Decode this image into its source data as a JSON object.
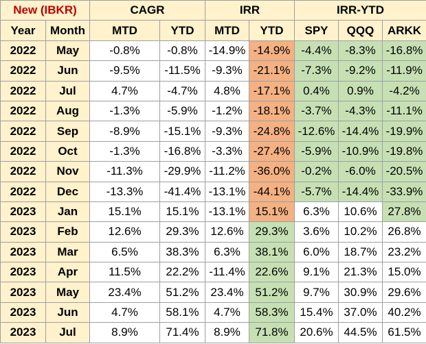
{
  "header": {
    "title": "New (IBKR)",
    "group_cagr": "CAGR",
    "group_irr": "IRR",
    "group_irr_ytd": "IRR-YTD",
    "col_year": "Year",
    "col_month": "Month",
    "cagr_mtd": "MTD",
    "cagr_ytd": "YTD",
    "irr_mtd": "MTD",
    "irr_ytd": "YTD",
    "spy": "SPY",
    "qqq": "QQQ",
    "arkk": "ARKK"
  },
  "rows": [
    {
      "year": "2022",
      "month": "May",
      "cagr_mtd": "-0.8%",
      "cagr_ytd": "-0.8%",
      "irr_mtd": "-14.9%",
      "irr_ytd": "-14.9%",
      "spy": "-4.4%",
      "qqq": "-8.3%",
      "arkk": "-16.8%",
      "irr_ytd_color": "#f4b183",
      "spy_color": "#c6e0b4",
      "qqq_color": "#c6e0b4",
      "arkk_color": "#c6e0b4"
    },
    {
      "year": "2022",
      "month": "Jun",
      "cagr_mtd": "-9.5%",
      "cagr_ytd": "-11.5%",
      "irr_mtd": "-9.3%",
      "irr_ytd": "-21.1%",
      "spy": "-7.3%",
      "qqq": "-9.2%",
      "arkk": "-11.9%",
      "irr_ytd_color": "#f4b183",
      "spy_color": "#c6e0b4",
      "qqq_color": "#c6e0b4",
      "arkk_color": "#c6e0b4"
    },
    {
      "year": "2022",
      "month": "Jul",
      "cagr_mtd": "4.7%",
      "cagr_ytd": "-4.7%",
      "irr_mtd": "4.8%",
      "irr_ytd": "-17.1%",
      "spy": "0.4%",
      "qqq": "0.9%",
      "arkk": "-4.2%",
      "irr_ytd_color": "#f4b183",
      "spy_color": "#c6e0b4",
      "qqq_color": "#c6e0b4",
      "arkk_color": "#c6e0b4"
    },
    {
      "year": "2022",
      "month": "Aug",
      "cagr_mtd": "-1.3%",
      "cagr_ytd": "-5.9%",
      "irr_mtd": "-1.2%",
      "irr_ytd": "-18.1%",
      "spy": "-3.7%",
      "qqq": "-4.3%",
      "arkk": "-11.1%",
      "irr_ytd_color": "#f4b183",
      "spy_color": "#c6e0b4",
      "qqq_color": "#c6e0b4",
      "arkk_color": "#c6e0b4"
    },
    {
      "year": "2022",
      "month": "Sep",
      "cagr_mtd": "-8.9%",
      "cagr_ytd": "-15.1%",
      "irr_mtd": "-9.3%",
      "irr_ytd": "-24.8%",
      "spy": "-12.6%",
      "qqq": "-14.4%",
      "arkk": "-19.9%",
      "irr_ytd_color": "#f4b183",
      "spy_color": "#c6e0b4",
      "qqq_color": "#c6e0b4",
      "arkk_color": "#c6e0b4"
    },
    {
      "year": "2022",
      "month": "Oct",
      "cagr_mtd": "-1.3%",
      "cagr_ytd": "-16.8%",
      "irr_mtd": "-3.3%",
      "irr_ytd": "-27.4%",
      "spy": "-5.9%",
      "qqq": "-10.9%",
      "arkk": "-19.8%",
      "irr_ytd_color": "#f4b183",
      "spy_color": "#c6e0b4",
      "qqq_color": "#c6e0b4",
      "arkk_color": "#c6e0b4"
    },
    {
      "year": "2022",
      "month": "Nov",
      "cagr_mtd": "-11.3%",
      "cagr_ytd": "-29.9%",
      "irr_mtd": "-11.2%",
      "irr_ytd": "-36.0%",
      "spy": "-0.2%",
      "qqq": "-6.0%",
      "arkk": "-20.5%",
      "irr_ytd_color": "#f4b183",
      "spy_color": "#c6e0b4",
      "qqq_color": "#c6e0b4",
      "arkk_color": "#c6e0b4"
    },
    {
      "year": "2022",
      "month": "Dec",
      "cagr_mtd": "-13.3%",
      "cagr_ytd": "-41.4%",
      "irr_mtd": "-13.1%",
      "irr_ytd": "-44.1%",
      "spy": "-5.7%",
      "qqq": "-14.4%",
      "arkk": "-33.9%",
      "irr_ytd_color": "#f4b183",
      "spy_color": "#c6e0b4",
      "qqq_color": "#c6e0b4",
      "arkk_color": "#c6e0b4"
    },
    {
      "year": "2023",
      "month": "Jan",
      "cagr_mtd": "15.1%",
      "cagr_ytd": "15.1%",
      "irr_mtd": "-13.1%",
      "irr_ytd": "15.1%",
      "spy": "6.3%",
      "qqq": "10.6%",
      "arkk": "27.8%",
      "irr_ytd_color": "#f4b183",
      "spy_color": "#ffffff",
      "qqq_color": "#ffffff",
      "arkk_color": "#c6e0b4"
    },
    {
      "year": "2023",
      "month": "Feb",
      "cagr_mtd": "12.6%",
      "cagr_ytd": "29.3%",
      "irr_mtd": "12.6%",
      "irr_ytd": "29.3%",
      "spy": "3.6%",
      "qqq": "10.2%",
      "arkk": "26.8%",
      "irr_ytd_color": "#c6e0b4",
      "spy_color": "#ffffff",
      "qqq_color": "#ffffff",
      "arkk_color": "#ffffff"
    },
    {
      "year": "2023",
      "month": "Mar",
      "cagr_mtd": "6.5%",
      "cagr_ytd": "38.3%",
      "irr_mtd": "6.3%",
      "irr_ytd": "38.1%",
      "spy": "6.0%",
      "qqq": "18.7%",
      "arkk": "23.2%",
      "irr_ytd_color": "#c6e0b4",
      "spy_color": "#ffffff",
      "qqq_color": "#ffffff",
      "arkk_color": "#ffffff"
    },
    {
      "year": "2023",
      "month": "Apr",
      "cagr_mtd": "11.5%",
      "cagr_ytd": "22.2%",
      "irr_mtd": "-11.4%",
      "irr_ytd": "22.6%",
      "spy": "9.1%",
      "qqq": "21.3%",
      "arkk": "15.0%",
      "irr_ytd_color": "#c6e0b4",
      "spy_color": "#ffffff",
      "qqq_color": "#ffffff",
      "arkk_color": "#ffffff"
    },
    {
      "year": "2023",
      "month": "May",
      "cagr_mtd": "23.4%",
      "cagr_ytd": "51.2%",
      "irr_mtd": "23.4%",
      "irr_ytd": "51.2%",
      "spy": "9.7%",
      "qqq": "30.9%",
      "arkk": "29.6%",
      "irr_ytd_color": "#c6e0b4",
      "spy_color": "#ffffff",
      "qqq_color": "#ffffff",
      "arkk_color": "#ffffff"
    },
    {
      "year": "2023",
      "month": "Jun",
      "cagr_mtd": "4.7%",
      "cagr_ytd": "58.1%",
      "irr_mtd": "4.7%",
      "irr_ytd": "58.3%",
      "spy": "15.4%",
      "qqq": "37.0%",
      "arkk": "40.2%",
      "irr_ytd_color": "#c6e0b4",
      "spy_color": "#ffffff",
      "qqq_color": "#ffffff",
      "arkk_color": "#ffffff"
    },
    {
      "year": "2023",
      "month": "Jul",
      "cagr_mtd": "8.9%",
      "cagr_ytd": "71.4%",
      "irr_mtd": "8.9%",
      "irr_ytd": "71.8%",
      "spy": "20.6%",
      "qqq": "44.5%",
      "arkk": "61.5%",
      "irr_ytd_color": "#c6e0b4",
      "spy_color": "#ffffff",
      "qqq_color": "#ffffff",
      "arkk_color": "#ffffff"
    }
  ]
}
